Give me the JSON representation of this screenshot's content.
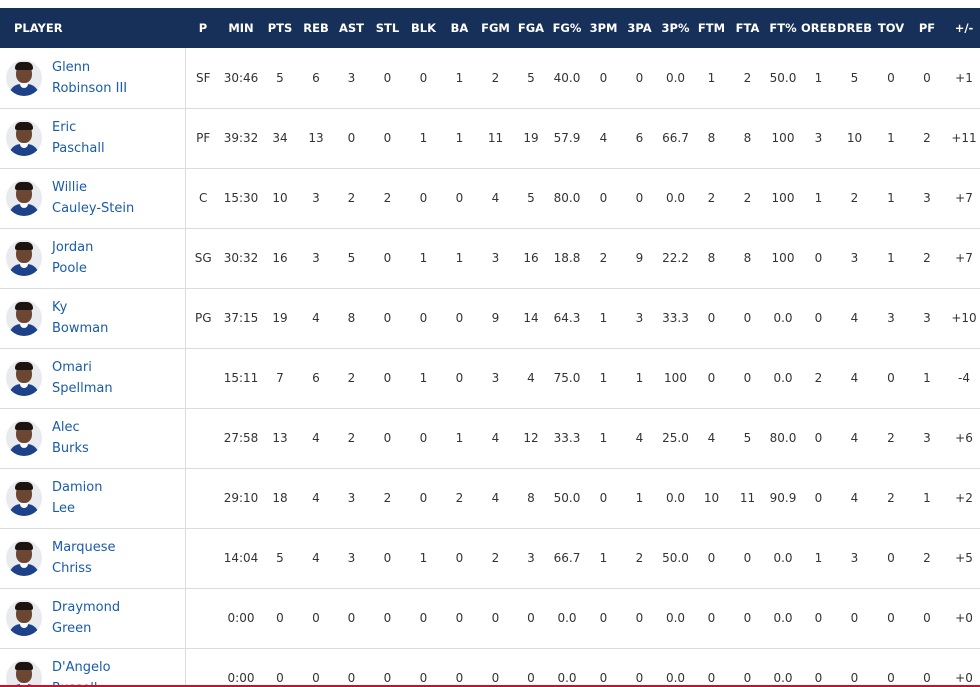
{
  "columns": [
    "PLAYER",
    "P",
    "MIN",
    "PTS",
    "REB",
    "AST",
    "STL",
    "BLK",
    "BA",
    "FGM",
    "FGA",
    "FG%",
    "3PM",
    "3PA",
    "3P%",
    "FTM",
    "FTA",
    "FT%",
    "OREB",
    "DREB",
    "TOV",
    "PF",
    "+/-"
  ],
  "players": [
    {
      "first": "Glenn",
      "last": "Robinson III",
      "stats": [
        "SF",
        "30:46",
        "5",
        "6",
        "3",
        "0",
        "0",
        "1",
        "2",
        "5",
        "40.0",
        "0",
        "0",
        "0.0",
        "1",
        "2",
        "50.0",
        "1",
        "5",
        "0",
        "0",
        "+1"
      ]
    },
    {
      "first": "Eric",
      "last": "Paschall",
      "stats": [
        "PF",
        "39:32",
        "34",
        "13",
        "0",
        "0",
        "1",
        "1",
        "11",
        "19",
        "57.9",
        "4",
        "6",
        "66.7",
        "8",
        "8",
        "100",
        "3",
        "10",
        "1",
        "2",
        "+11"
      ]
    },
    {
      "first": "Willie",
      "last": "Cauley-Stein",
      "stats": [
        "C",
        "15:30",
        "10",
        "3",
        "2",
        "2",
        "0",
        "0",
        "4",
        "5",
        "80.0",
        "0",
        "0",
        "0.0",
        "2",
        "2",
        "100",
        "1",
        "2",
        "1",
        "3",
        "+7"
      ]
    },
    {
      "first": "Jordan",
      "last": "Poole",
      "stats": [
        "SG",
        "30:32",
        "16",
        "3",
        "5",
        "0",
        "1",
        "1",
        "3",
        "16",
        "18.8",
        "2",
        "9",
        "22.2",
        "8",
        "8",
        "100",
        "0",
        "3",
        "1",
        "2",
        "+7"
      ]
    },
    {
      "first": "Ky",
      "last": "Bowman",
      "stats": [
        "PG",
        "37:15",
        "19",
        "4",
        "8",
        "0",
        "0",
        "0",
        "9",
        "14",
        "64.3",
        "1",
        "3",
        "33.3",
        "0",
        "0",
        "0.0",
        "0",
        "4",
        "3",
        "3",
        "+10"
      ]
    },
    {
      "first": "Omari",
      "last": "Spellman",
      "stats": [
        "",
        "15:11",
        "7",
        "6",
        "2",
        "0",
        "1",
        "0",
        "3",
        "4",
        "75.0",
        "1",
        "1",
        "100",
        "0",
        "0",
        "0.0",
        "2",
        "4",
        "0",
        "1",
        "-4"
      ]
    },
    {
      "first": "Alec",
      "last": "Burks",
      "stats": [
        "",
        "27:58",
        "13",
        "4",
        "2",
        "0",
        "0",
        "1",
        "4",
        "12",
        "33.3",
        "1",
        "4",
        "25.0",
        "4",
        "5",
        "80.0",
        "0",
        "4",
        "2",
        "3",
        "+6"
      ]
    },
    {
      "first": "Damion",
      "last": "Lee",
      "stats": [
        "",
        "29:10",
        "18",
        "4",
        "3",
        "2",
        "0",
        "2",
        "4",
        "8",
        "50.0",
        "0",
        "1",
        "0.0",
        "10",
        "11",
        "90.9",
        "0",
        "4",
        "2",
        "1",
        "+2"
      ]
    },
    {
      "first": "Marquese",
      "last": "Chriss",
      "stats": [
        "",
        "14:04",
        "5",
        "4",
        "3",
        "0",
        "1",
        "0",
        "2",
        "3",
        "66.7",
        "1",
        "2",
        "50.0",
        "0",
        "0",
        "0.0",
        "1",
        "3",
        "0",
        "2",
        "+5"
      ]
    },
    {
      "first": "Draymond",
      "last": "Green",
      "stats": [
        "",
        "0:00",
        "0",
        "0",
        "0",
        "0",
        "0",
        "0",
        "0",
        "0",
        "0.0",
        "0",
        "0",
        "0.0",
        "0",
        "0",
        "0.0",
        "0",
        "0",
        "0",
        "0",
        "+0"
      ]
    },
    {
      "first": "D'Angelo",
      "last": "Russell",
      "stats": [
        "",
        "0:00",
        "0",
        "0",
        "0",
        "0",
        "0",
        "0",
        "0",
        "0",
        "0.0",
        "0",
        "0",
        "0.0",
        "0",
        "0",
        "0.0",
        "0",
        "0",
        "0",
        "0",
        "+0"
      ]
    }
  ],
  "colors": {
    "header_bg": "#16305a",
    "link": "#1a5ca8",
    "jersey": "#1d428a",
    "accent_line": "#c8102e"
  }
}
